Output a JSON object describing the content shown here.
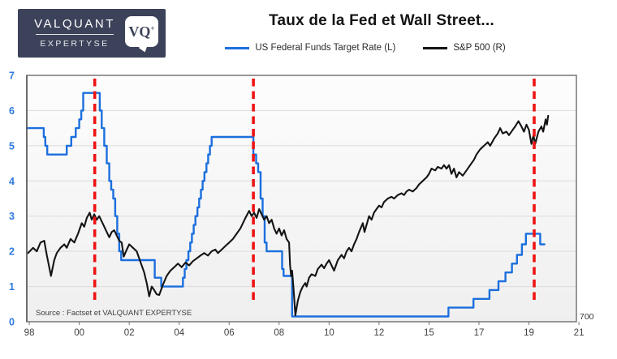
{
  "logo": {
    "line1": "VALQUANT",
    "line2": "EXPERTYSE",
    "badge_text": "VQ",
    "badge_plus": "+"
  },
  "header": {
    "title": "Taux de la Fed et Wall Street..."
  },
  "legend": {
    "items": [
      {
        "label": "US Federal Funds Target Rate (L)",
        "color": "#1B6FDE"
      },
      {
        "label": "S&P 500 (R)",
        "color": "#141414"
      }
    ]
  },
  "source_note": "Source : Factset et VALQUANT EXPERTYSE",
  "chart_data": {
    "type": "line",
    "title": "Taux de la Fed et Wall Street...",
    "grid": true,
    "left_axis": {
      "min": 0,
      "max": 7,
      "tick_labels": [
        "0",
        "1",
        "2",
        "3",
        "4",
        "5",
        "6",
        "7"
      ],
      "label_color": "#2E79E0"
    },
    "right_axis": {
      "only_visible_tick_label": "700"
    },
    "x_axis": {
      "tick_labels": [
        "98",
        "00",
        "02",
        "04",
        "06",
        "08",
        "10",
        "12",
        "15",
        "17",
        "19",
        "21"
      ],
      "tick_positions": [
        0,
        2,
        4,
        6,
        8,
        10,
        12,
        14,
        16,
        18,
        20,
        22
      ],
      "range": [
        -0.1,
        21.9
      ],
      "label_color": "#3F3F3F"
    },
    "event_lines": {
      "style": "dashed",
      "color": "#EE1414",
      "positions": [
        2.62,
        8.97,
        20.21
      ]
    },
    "series": [
      {
        "name": "US Federal Funds Target Rate (L)",
        "axis": "left",
        "color": "#1B6FDE",
        "line_style": "step-after",
        "points": [
          [
            -0.1,
            5.5
          ],
          [
            0.58,
            5.25
          ],
          [
            0.64,
            5.0
          ],
          [
            0.72,
            4.75
          ],
          [
            1.5,
            5.0
          ],
          [
            1.68,
            5.25
          ],
          [
            1.86,
            5.5
          ],
          [
            2.0,
            5.75
          ],
          [
            2.08,
            6.0
          ],
          [
            2.16,
            6.5
          ],
          [
            2.82,
            6.0
          ],
          [
            2.9,
            5.5
          ],
          [
            3.0,
            5.0
          ],
          [
            3.1,
            4.5
          ],
          [
            3.2,
            4.0
          ],
          [
            3.28,
            3.75
          ],
          [
            3.36,
            3.5
          ],
          [
            3.44,
            3.0
          ],
          [
            3.52,
            2.5
          ],
          [
            3.6,
            2.0
          ],
          [
            3.68,
            1.75
          ],
          [
            5.02,
            1.25
          ],
          [
            5.28,
            1.0
          ],
          [
            6.15,
            1.25
          ],
          [
            6.22,
            1.5
          ],
          [
            6.29,
            1.75
          ],
          [
            6.37,
            2.0
          ],
          [
            6.44,
            2.25
          ],
          [
            6.51,
            2.5
          ],
          [
            6.58,
            2.75
          ],
          [
            6.65,
            3.0
          ],
          [
            6.73,
            3.25
          ],
          [
            6.8,
            3.5
          ],
          [
            6.87,
            3.75
          ],
          [
            6.94,
            4.0
          ],
          [
            7.01,
            4.25
          ],
          [
            7.09,
            4.5
          ],
          [
            7.16,
            4.75
          ],
          [
            7.23,
            5.0
          ],
          [
            7.3,
            5.25
          ],
          [
            8.97,
            4.75
          ],
          [
            9.08,
            4.5
          ],
          [
            9.16,
            4.25
          ],
          [
            9.26,
            3.5
          ],
          [
            9.34,
            3.0
          ],
          [
            9.42,
            2.25
          ],
          [
            9.5,
            2.0
          ],
          [
            10.12,
            1.5
          ],
          [
            10.18,
            1.3
          ],
          [
            10.52,
            0.15
          ],
          [
            16.78,
            0.4
          ],
          [
            17.78,
            0.65
          ],
          [
            18.42,
            0.9
          ],
          [
            18.78,
            1.15
          ],
          [
            19.06,
            1.4
          ],
          [
            19.32,
            1.65
          ],
          [
            19.52,
            1.9
          ],
          [
            19.72,
            2.2
          ],
          [
            19.88,
            2.5
          ],
          [
            20.45,
            2.2
          ],
          [
            20.62,
            2.2
          ]
        ]
      },
      {
        "name": "S&P 500 (R)",
        "axis": "right",
        "color": "#141414",
        "line_style": "linear",
        "points": [
          [
            -0.05,
            1.95
          ],
          [
            0.15,
            2.1
          ],
          [
            0.3,
            2.0
          ],
          [
            0.45,
            2.25
          ],
          [
            0.6,
            2.3
          ],
          [
            0.7,
            1.9
          ],
          [
            0.87,
            1.3
          ],
          [
            1.0,
            1.75
          ],
          [
            1.1,
            1.95
          ],
          [
            1.25,
            2.1
          ],
          [
            1.4,
            2.2
          ],
          [
            1.5,
            2.1
          ],
          [
            1.65,
            2.35
          ],
          [
            1.8,
            2.25
          ],
          [
            1.95,
            2.5
          ],
          [
            2.1,
            2.8
          ],
          [
            2.2,
            2.7
          ],
          [
            2.3,
            2.95
          ],
          [
            2.42,
            3.1
          ],
          [
            2.5,
            2.9
          ],
          [
            2.6,
            3.05
          ],
          [
            2.7,
            2.9
          ],
          [
            2.8,
            3.0
          ],
          [
            2.9,
            2.85
          ],
          [
            3.0,
            2.7
          ],
          [
            3.1,
            2.55
          ],
          [
            3.2,
            2.4
          ],
          [
            3.3,
            2.55
          ],
          [
            3.4,
            2.6
          ],
          [
            3.5,
            2.45
          ],
          [
            3.6,
            2.3
          ],
          [
            3.7,
            2.25
          ],
          [
            3.78,
            1.85
          ],
          [
            3.9,
            2.05
          ],
          [
            4.0,
            2.2
          ],
          [
            4.15,
            2.1
          ],
          [
            4.3,
            2.0
          ],
          [
            4.45,
            1.7
          ],
          [
            4.6,
            1.4
          ],
          [
            4.7,
            1.1
          ],
          [
            4.8,
            0.72
          ],
          [
            4.9,
            1.0
          ],
          [
            5.0,
            0.9
          ],
          [
            5.1,
            0.78
          ],
          [
            5.2,
            0.76
          ],
          [
            5.35,
            1.05
          ],
          [
            5.5,
            1.3
          ],
          [
            5.65,
            1.45
          ],
          [
            5.8,
            1.55
          ],
          [
            5.95,
            1.65
          ],
          [
            6.1,
            1.55
          ],
          [
            6.25,
            1.68
          ],
          [
            6.4,
            1.6
          ],
          [
            6.55,
            1.72
          ],
          [
            6.7,
            1.8
          ],
          [
            6.85,
            1.88
          ],
          [
            7.0,
            1.95
          ],
          [
            7.15,
            1.88
          ],
          [
            7.3,
            2.0
          ],
          [
            7.45,
            2.05
          ],
          [
            7.55,
            1.95
          ],
          [
            7.7,
            2.05
          ],
          [
            7.85,
            2.15
          ],
          [
            8.0,
            2.25
          ],
          [
            8.15,
            2.35
          ],
          [
            8.3,
            2.5
          ],
          [
            8.45,
            2.65
          ],
          [
            8.55,
            2.8
          ],
          [
            8.65,
            2.95
          ],
          [
            8.8,
            3.15
          ],
          [
            8.9,
            3.0
          ],
          [
            9.0,
            3.1
          ],
          [
            9.1,
            2.95
          ],
          [
            9.2,
            3.2
          ],
          [
            9.3,
            3.05
          ],
          [
            9.4,
            2.9
          ],
          [
            9.5,
            3.0
          ],
          [
            9.6,
            2.8
          ],
          [
            9.7,
            2.9
          ],
          [
            9.8,
            2.65
          ],
          [
            9.9,
            2.5
          ],
          [
            10.0,
            2.65
          ],
          [
            10.1,
            2.45
          ],
          [
            10.2,
            2.6
          ],
          [
            10.3,
            2.35
          ],
          [
            10.4,
            2.25
          ],
          [
            10.44,
            1.6
          ],
          [
            10.48,
            1.3
          ],
          [
            10.52,
            1.45
          ],
          [
            10.58,
            0.9
          ],
          [
            10.65,
            0.18
          ],
          [
            10.75,
            0.6
          ],
          [
            10.85,
            0.85
          ],
          [
            10.95,
            1.0
          ],
          [
            11.05,
            1.1
          ],
          [
            11.1,
            1.0
          ],
          [
            11.2,
            1.25
          ],
          [
            11.3,
            1.35
          ],
          [
            11.45,
            1.3
          ],
          [
            11.55,
            1.5
          ],
          [
            11.7,
            1.62
          ],
          [
            11.8,
            1.52
          ],
          [
            11.9,
            1.65
          ],
          [
            12.0,
            1.75
          ],
          [
            12.1,
            1.6
          ],
          [
            12.2,
            1.45
          ],
          [
            12.35,
            1.75
          ],
          [
            12.5,
            1.9
          ],
          [
            12.6,
            1.8
          ],
          [
            12.7,
            2.0
          ],
          [
            12.8,
            2.1
          ],
          [
            12.9,
            2.0
          ],
          [
            13.0,
            2.2
          ],
          [
            13.1,
            2.35
          ],
          [
            13.2,
            2.55
          ],
          [
            13.35,
            2.8
          ],
          [
            13.42,
            2.55
          ],
          [
            13.5,
            2.75
          ],
          [
            13.6,
            3.0
          ],
          [
            13.7,
            2.9
          ],
          [
            13.8,
            3.1
          ],
          [
            13.9,
            3.2
          ],
          [
            14.0,
            3.3
          ],
          [
            14.1,
            3.25
          ],
          [
            14.2,
            3.4
          ],
          [
            14.35,
            3.5
          ],
          [
            14.5,
            3.55
          ],
          [
            14.6,
            3.5
          ],
          [
            14.75,
            3.6
          ],
          [
            14.9,
            3.65
          ],
          [
            15.0,
            3.6
          ],
          [
            15.1,
            3.7
          ],
          [
            15.2,
            3.75
          ],
          [
            15.35,
            3.7
          ],
          [
            15.5,
            3.8
          ],
          [
            15.6,
            3.9
          ],
          [
            15.75,
            4.0
          ],
          [
            15.9,
            4.1
          ],
          [
            16.0,
            4.2
          ],
          [
            16.1,
            4.35
          ],
          [
            16.25,
            4.3
          ],
          [
            16.35,
            4.4
          ],
          [
            16.5,
            4.35
          ],
          [
            16.6,
            4.45
          ],
          [
            16.7,
            4.35
          ],
          [
            16.8,
            4.45
          ],
          [
            16.9,
            4.2
          ],
          [
            17.0,
            4.35
          ],
          [
            17.1,
            4.1
          ],
          [
            17.2,
            4.25
          ],
          [
            17.35,
            4.15
          ],
          [
            17.5,
            4.3
          ],
          [
            17.65,
            4.45
          ],
          [
            17.8,
            4.6
          ],
          [
            17.9,
            4.75
          ],
          [
            18.05,
            4.9
          ],
          [
            18.2,
            5.0
          ],
          [
            18.35,
            5.1
          ],
          [
            18.45,
            5.0
          ],
          [
            18.6,
            5.2
          ],
          [
            18.75,
            5.35
          ],
          [
            18.85,
            5.5
          ],
          [
            18.95,
            5.35
          ],
          [
            19.1,
            5.4
          ],
          [
            19.2,
            5.3
          ],
          [
            19.35,
            5.45
          ],
          [
            19.45,
            5.55
          ],
          [
            19.58,
            5.7
          ],
          [
            19.7,
            5.55
          ],
          [
            19.8,
            5.4
          ],
          [
            19.9,
            5.6
          ],
          [
            20.0,
            5.45
          ],
          [
            20.1,
            5.05
          ],
          [
            20.18,
            5.3
          ],
          [
            20.25,
            5.05
          ],
          [
            20.38,
            5.4
          ],
          [
            20.5,
            5.55
          ],
          [
            20.57,
            5.4
          ],
          [
            20.67,
            5.75
          ],
          [
            20.72,
            5.6
          ],
          [
            20.77,
            5.85
          ]
        ]
      }
    ]
  }
}
